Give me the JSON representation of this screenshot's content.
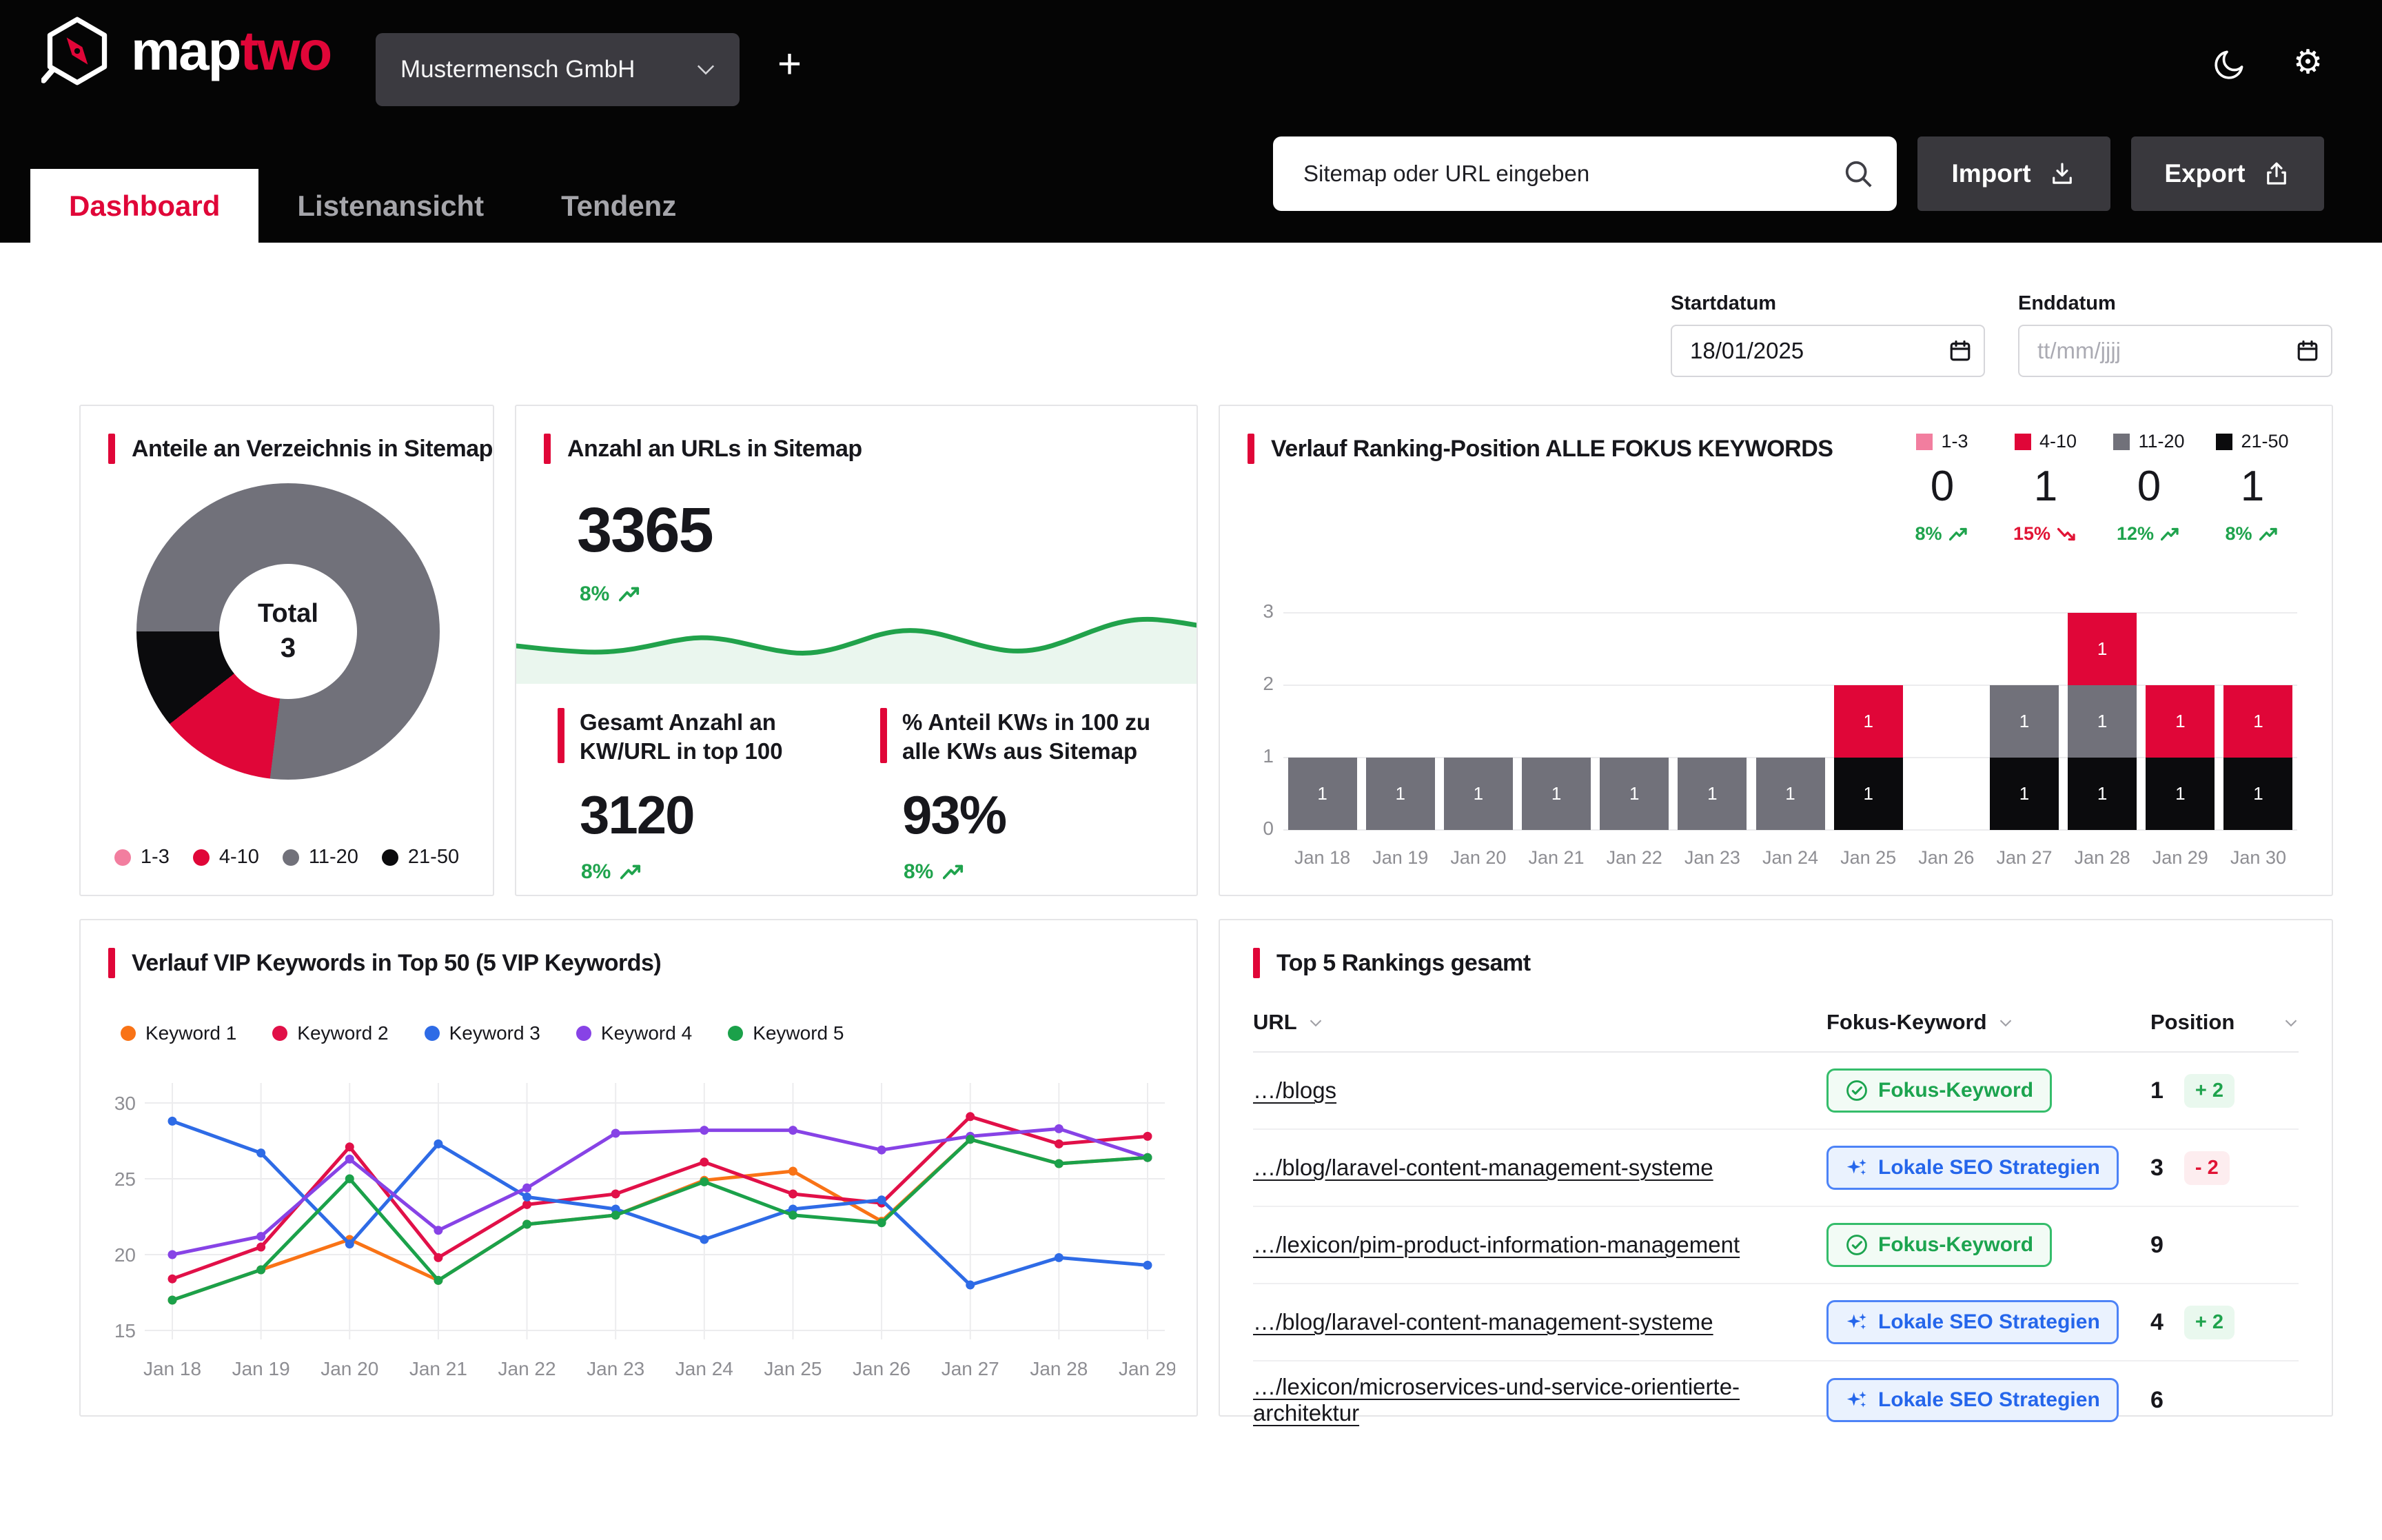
{
  "header": {
    "brand": {
      "map": "map",
      "two": "two"
    },
    "company_selector": {
      "value": "Mustermensch GmbH"
    },
    "add_button_label": "+",
    "search_placeholder": "Sitemap oder URL eingeben",
    "import_label": "Import",
    "export_label": "Export",
    "tabs": [
      {
        "label": "Dashboard"
      },
      {
        "label": "Listenansicht"
      },
      {
        "label": "Tendenz"
      }
    ]
  },
  "filters": {
    "start_label": "Startdatum",
    "start_value": "18/01/2025",
    "end_label": "Enddatum",
    "end_placeholder": "tt/mm/jjjj"
  },
  "donut_card": {
    "title": "Anteile an Verzeichnis in Sitemap",
    "center_label": "Total",
    "center_value": "3"
  },
  "urls_card": {
    "title": "Anzahl an URLs in Sitemap",
    "value": "3365",
    "delta": "8%",
    "trend": "up",
    "sub_metrics": [
      {
        "title": "Gesamt Anzahl an KW/URL in top 100",
        "value": "3120",
        "delta": "8%",
        "trend": "up"
      },
      {
        "title": "% Anteil KWs in 100 zu alle KWs aus Sitemap",
        "value": "93%",
        "delta": "8%",
        "trend": "up"
      }
    ]
  },
  "ranking_card": {
    "title": "Verlauf Ranking-Position ALLE FOKUS KEYWORDS",
    "legend": [
      {
        "label": "1-3",
        "color": "#F27E9F",
        "value": "0",
        "delta": "8%",
        "trend": "up"
      },
      {
        "label": "4-10",
        "color": "#E00638",
        "value": "1",
        "delta": "15%",
        "trend": "down"
      },
      {
        "label": "11-20",
        "color": "#71717A",
        "value": "0",
        "delta": "12%",
        "trend": "up"
      },
      {
        "label": "21-50",
        "color": "#0B0B0D",
        "value": "1",
        "delta": "8%",
        "trend": "up"
      }
    ]
  },
  "vip_card": {
    "title": "Verlauf VIP Keywords in Top 50 (5 VIP Keywords)"
  },
  "table_card": {
    "title": "Top 5 Rankings gesamt",
    "columns": [
      "URL",
      "Fokus-Keyword",
      "Position"
    ],
    "rows": [
      {
        "url": "…/blogs",
        "badge_type": "fokus",
        "badge_label": "Fokus-Keyword",
        "position": "1",
        "change": "+ 2",
        "change_dir": "up"
      },
      {
        "url": "…/blog/laravel-content-management-systeme",
        "badge_type": "lokale",
        "badge_label": "Lokale SEO Strategien",
        "position": "3",
        "change": "- 2",
        "change_dir": "down"
      },
      {
        "url": "…/lexicon/pim-product-information-management",
        "badge_type": "fokus",
        "badge_label": "Fokus-Keyword",
        "position": "9",
        "change": "",
        "change_dir": ""
      },
      {
        "url": "…/blog/laravel-content-management-systeme",
        "badge_type": "lokale",
        "badge_label": "Lokale SEO Strategien",
        "position": "4",
        "change": "+ 2",
        "change_dir": "up"
      },
      {
        "url": "…/lexicon/microservices-und-service-orientierte-architektur",
        "badge_type": "lokale",
        "badge_label": "Lokale SEO Strategien",
        "position": "6",
        "change": "",
        "change_dir": ""
      }
    ]
  },
  "chart_data": [
    {
      "type": "pie",
      "title": "Anteile an Verzeichnis in Sitemap",
      "center_label": "Total",
      "total": 3,
      "segments": [
        {
          "label": "1-3",
          "color": "#F27E9F",
          "share_pct": 0
        },
        {
          "label": "4-10",
          "color": "#E00638",
          "share_pct": 12.5
        },
        {
          "label": "11-20",
          "color": "#71717A",
          "share_pct": 77
        },
        {
          "label": "21-50",
          "color": "#0B0B0D",
          "share_pct": 10.5
        }
      ],
      "render": {
        "start_deg": 187,
        "arcs": [
          {
            "color": "#E00638",
            "deg": 45
          },
          {
            "color": "#0B0B0D",
            "deg": 38
          },
          {
            "color": "#71717A",
            "deg": 277
          }
        ]
      }
    },
    {
      "type": "area",
      "title": "Anzahl an URLs in Sitemap Sparkline",
      "color": "#21A24B",
      "fill": "#EAF6EE",
      "values": [
        44,
        40,
        37,
        35,
        37,
        43,
        51,
        56,
        53,
        45,
        37,
        33,
        38,
        49,
        61,
        66,
        62,
        52,
        42,
        36,
        39,
        50,
        64,
        76,
        81,
        78,
        72
      ]
    },
    {
      "type": "bar",
      "stacked": true,
      "title": "Verlauf Ranking-Position ALLE FOKUS KEYWORDS",
      "categories": [
        "Jan 18",
        "Jan 19",
        "Jan 20",
        "Jan 21",
        "Jan 22",
        "Jan 23",
        "Jan 24",
        "Jan 25",
        "Jan 26",
        "Jan 27",
        "Jan 28",
        "Jan 29",
        "Jan 30"
      ],
      "ylim": [
        0,
        3
      ],
      "yticks": [
        0,
        1,
        2,
        3
      ],
      "series": [
        {
          "name": "21-50",
          "color": "#0B0B0D",
          "values": [
            0,
            0,
            0,
            0,
            0,
            0,
            0,
            1,
            0,
            1,
            1,
            1,
            1
          ]
        },
        {
          "name": "11-20",
          "color": "#71717A",
          "values": [
            1,
            1,
            1,
            1,
            1,
            1,
            1,
            0,
            0,
            1,
            1,
            0,
            0
          ]
        },
        {
          "name": "4-10",
          "color": "#E00638",
          "values": [
            0,
            0,
            0,
            0,
            0,
            0,
            0,
            1,
            0,
            0,
            1,
            1,
            1
          ]
        },
        {
          "name": "1-3",
          "color": "#F27E9F",
          "values": [
            0,
            0,
            0,
            0,
            0,
            0,
            0,
            0,
            0,
            0,
            0,
            0,
            0
          ]
        }
      ]
    },
    {
      "type": "line",
      "title": "Verlauf VIP Keywords in Top 50 (5 VIP Keywords)",
      "categories": [
        "Jan 18",
        "Jan 19",
        "Jan 20",
        "Jan 21",
        "Jan 22",
        "Jan 23",
        "Jan 24",
        "Jan 25",
        "Jan 26",
        "Jan 27",
        "Jan 28",
        "Jan 29"
      ],
      "ylim": [
        13.5,
        31.5
      ],
      "yticks": [
        15,
        20,
        25,
        30
      ],
      "series": [
        {
          "name": "Keyword 1",
          "color": "#F97316",
          "values": [
            17,
            19,
            21,
            18.3,
            22,
            22.6,
            24.9,
            25.5,
            22.2,
            27.6,
            26,
            26.4
          ]
        },
        {
          "name": "Keyword 2",
          "color": "#E11048",
          "values": [
            18.4,
            20.5,
            27.1,
            19.8,
            23.3,
            24,
            26.1,
            24,
            23.4,
            29.1,
            27.3,
            27.8
          ]
        },
        {
          "name": "Keyword 3",
          "color": "#2E6BE6",
          "values": [
            28.8,
            26.7,
            20.7,
            27.3,
            23.8,
            23,
            21,
            23,
            23.6,
            18,
            19.8,
            19.3
          ]
        },
        {
          "name": "Keyword 4",
          "color": "#8743E6",
          "values": [
            20,
            21.2,
            26.3,
            21.6,
            24.4,
            28,
            28.2,
            28.2,
            26.9,
            27.8,
            28.3,
            26.4
          ]
        },
        {
          "name": "Keyword 5",
          "color": "#1BA14A",
          "values": [
            17,
            19,
            25,
            18.3,
            22,
            22.6,
            24.8,
            22.6,
            22.1,
            27.6,
            26,
            26.4
          ]
        }
      ]
    }
  ]
}
